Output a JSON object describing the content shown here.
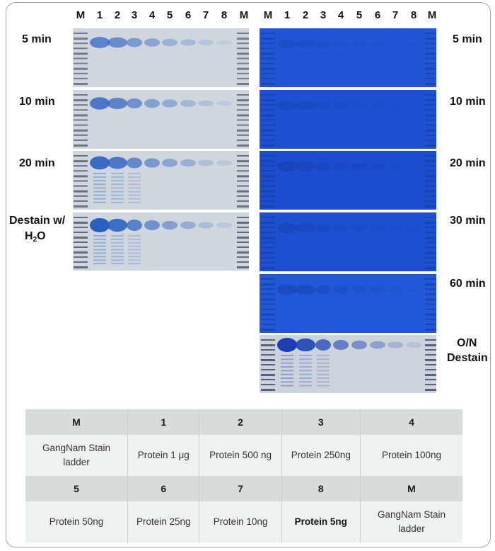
{
  "left_panel": {
    "lane_headers": [
      "M",
      "1",
      "2",
      "3",
      "4",
      "5",
      "6",
      "7",
      "8",
      "M"
    ],
    "rows": [
      {
        "label": "5 min"
      },
      {
        "label": "10 min"
      },
      {
        "label": "20 min"
      },
      {
        "label_line1": "Destain w/",
        "label_line2_main": "H",
        "label_line2_sub": "2",
        "label_line2_tail": "O"
      }
    ]
  },
  "right_panel": {
    "lane_headers": [
      "M",
      "1",
      "2",
      "3",
      "4",
      "5",
      "6",
      "7",
      "8",
      "M"
    ],
    "rows": [
      {
        "label": "5 min"
      },
      {
        "label": "10 min"
      },
      {
        "label": "20 min"
      },
      {
        "label": "30 min"
      },
      {
        "label": "60 min"
      },
      {
        "label_line1": "O/N",
        "label_line2": "Destain"
      }
    ]
  },
  "legend": {
    "row1_headers": [
      "M",
      "1",
      "2",
      "3",
      "4"
    ],
    "row1_desc": [
      "GangNam Stain ladder",
      "Protein 1 μg",
      "Protein 500 ng",
      "Protein 250ng",
      "Protein 100ng"
    ],
    "row2_headers": [
      "5",
      "6",
      "7",
      "8",
      "M"
    ],
    "row2_desc": [
      "Protein 50ng",
      "Protein 25ng",
      "Protein 10ng",
      "Protein 5ng",
      "GangNam Stain ladder"
    ]
  }
}
